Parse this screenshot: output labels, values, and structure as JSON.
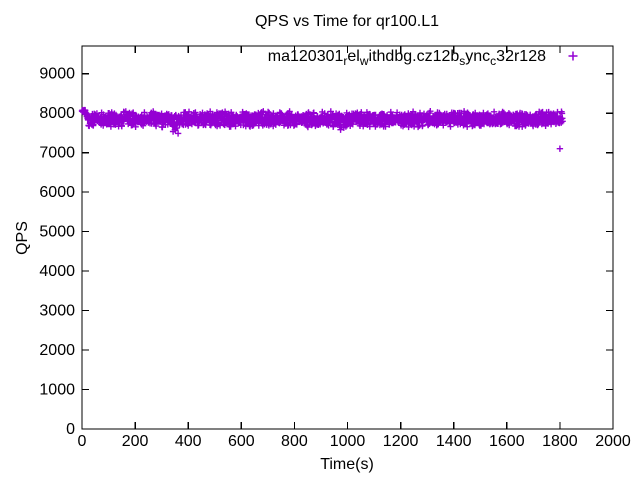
{
  "window": {
    "background": "#ffffff",
    "foreground": "#000000"
  },
  "chart_data": {
    "type": "scatter",
    "title": "QPS vs Time for qr100.L1",
    "xlabel": "Time(s)",
    "ylabel": "QPS",
    "xlim": [
      0,
      2000
    ],
    "ylim": [
      0,
      9700
    ],
    "xticks": [
      0,
      200,
      400,
      600,
      800,
      1000,
      1200,
      1400,
      1600,
      1800,
      2000
    ],
    "yticks": [
      0,
      1000,
      2000,
      3000,
      4000,
      5000,
      6000,
      7000,
      8000,
      9000
    ],
    "grid": false,
    "axis_color": "#000000",
    "legend": {
      "position": "top-right-inside",
      "marker": "plus"
    },
    "series": [
      {
        "name": "ma120301_rel_withdbg.cz12b_sync_c32r128",
        "name_segments": [
          {
            "t": "ma120301"
          },
          {
            "t": "r",
            "sub": true
          },
          {
            "t": "el"
          },
          {
            "t": "w",
            "sub": true
          },
          {
            "t": "ithdbg.cz12b"
          },
          {
            "t": "s",
            "sub": true
          },
          {
            "t": "ync"
          },
          {
            "t": "c",
            "sub": true
          },
          {
            "t": "32r128"
          }
        ],
        "color": "#9400D3",
        "marker": "plus",
        "band": {
          "t_start": 0,
          "t_end": 1810,
          "step": 1,
          "baseline": 7845,
          "noise_amplitude": 210,
          "start_spike": {
            "t_end": 12,
            "blend_end": 24,
            "value": 8050,
            "spread": 70
          },
          "dips": [
            {
              "t": 350,
              "width": 12,
              "depth": 240
            },
            {
              "t": 980,
              "width": 9,
              "depth": 250
            }
          ],
          "outlier": [
            1800,
            7100
          ]
        },
        "sample_points": [
          [
            0,
            8050
          ],
          [
            10,
            8040
          ],
          [
            30,
            7860
          ],
          [
            100,
            7850
          ],
          [
            200,
            7840
          ],
          [
            300,
            7850
          ],
          [
            350,
            7620
          ],
          [
            400,
            7830
          ],
          [
            500,
            7850
          ],
          [
            600,
            7840
          ],
          [
            700,
            7860
          ],
          [
            800,
            7850
          ],
          [
            900,
            7840
          ],
          [
            980,
            7580
          ],
          [
            1000,
            7850
          ],
          [
            1100,
            7860
          ],
          [
            1200,
            7840
          ],
          [
            1300,
            7850
          ],
          [
            1400,
            7850
          ],
          [
            1500,
            7860
          ],
          [
            1600,
            7840
          ],
          [
            1700,
            7850
          ],
          [
            1790,
            7840
          ],
          [
            1800,
            7100
          ],
          [
            1810,
            7840
          ]
        ]
      }
    ]
  }
}
